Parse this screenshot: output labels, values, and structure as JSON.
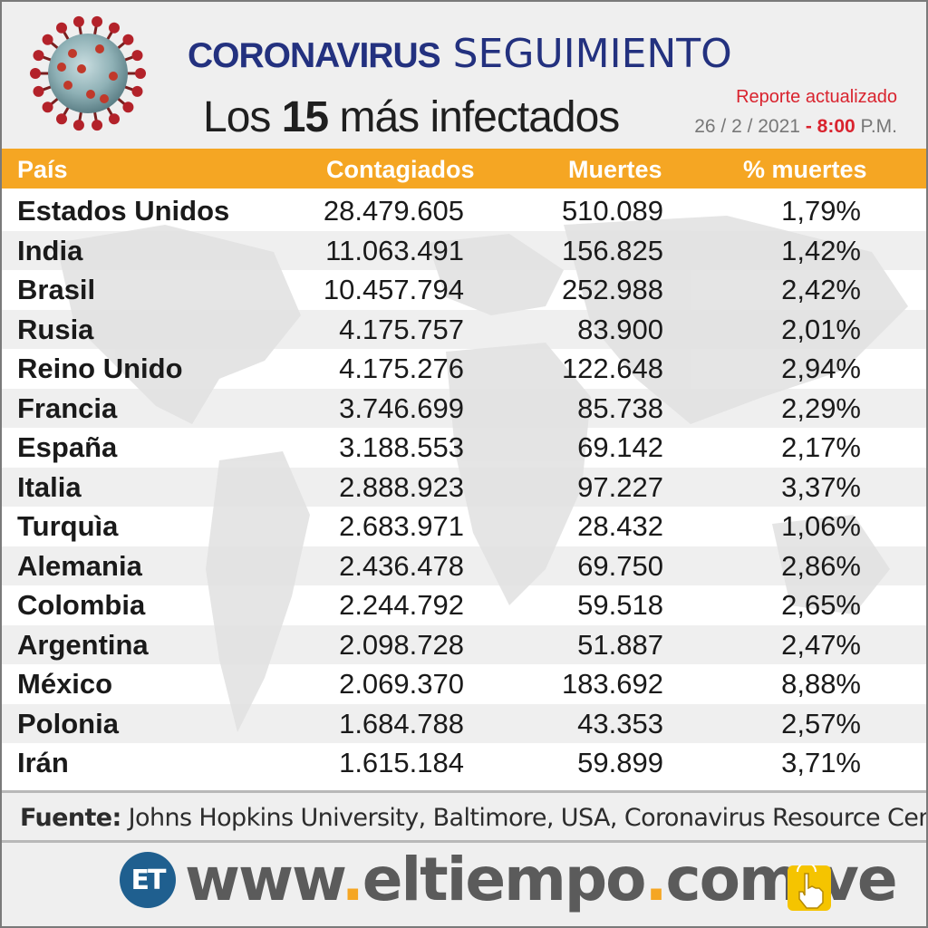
{
  "header": {
    "title_main": "Coronavirus",
    "title_sub": "SEGUIMIENTO",
    "subtitle_prefix": "Los",
    "subtitle_number": "15",
    "subtitle_suffix": "más infectados",
    "report_label": "Reporte actualizado",
    "date": "26 / 2 / 2021",
    "date_sep": "-",
    "time": "8:00",
    "time_suffix": "P.M."
  },
  "table": {
    "columns": [
      "País",
      "Contagiados",
      "Muertes",
      "% muertes"
    ],
    "rows": [
      {
        "pais": "Estados Unidos",
        "contagiados": "28.479.605",
        "muertes": "510.089",
        "pct": "1,79%"
      },
      {
        "pais": "India",
        "contagiados": "11.063.491",
        "muertes": "156.825",
        "pct": "1,42%"
      },
      {
        "pais": "Brasil",
        "contagiados": "10.457.794",
        "muertes": "252.988",
        "pct": "2,42%"
      },
      {
        "pais": "Rusia",
        "contagiados": "4.175.757",
        "muertes": "83.900",
        "pct": "2,01%"
      },
      {
        "pais": "Reino Unido",
        "contagiados": "4.175.276",
        "muertes": "122.648",
        "pct": "2,94%"
      },
      {
        "pais": "Francia",
        "contagiados": "3.746.699",
        "muertes": "85.738",
        "pct": "2,29%"
      },
      {
        "pais": "España",
        "contagiados": "3.188.553",
        "muertes": "69.142",
        "pct": "2,17%"
      },
      {
        "pais": "Italia",
        "contagiados": "2.888.923",
        "muertes": "97.227",
        "pct": "3,37%"
      },
      {
        "pais": "Turquìa",
        "contagiados": "2.683.971",
        "muertes": "28.432",
        "pct": "1,06%"
      },
      {
        "pais": "Alemania",
        "contagiados": "2.436.478",
        "muertes": "69.750",
        "pct": "2,86%"
      },
      {
        "pais": "Colombia",
        "contagiados": "2.244.792",
        "muertes": "59.518",
        "pct": "2,65%"
      },
      {
        "pais": "Argentina",
        "contagiados": "2.098.728",
        "muertes": "51.887",
        "pct": "2,47%"
      },
      {
        "pais": "México",
        "contagiados": "2.069.370",
        "muertes": "183.692",
        "pct": "8,88%"
      },
      {
        "pais": "Polonia",
        "contagiados": "1.684.788",
        "muertes": "43.353",
        "pct": "2,57%"
      },
      {
        "pais": "Irán",
        "contagiados": "1.615.184",
        "muertes": "59.899",
        "pct": "3,71%"
      }
    ]
  },
  "footer": {
    "source_label": "Fuente:",
    "source_text": "Johns Hopkins University, Baltimore, USA, Coronavirus Resource Center",
    "logo_text": "ET",
    "url_parts": [
      "www",
      ".",
      "eltiempo",
      ".",
      "com",
      ".",
      "ve"
    ]
  },
  "colors": {
    "header_bar": "#f5a623",
    "title": "#23317f",
    "accent_red": "#d9232e"
  },
  "icons": [
    "coronavirus-icon",
    "world-map-image",
    "et-logo",
    "pointing-hand-icon"
  ]
}
